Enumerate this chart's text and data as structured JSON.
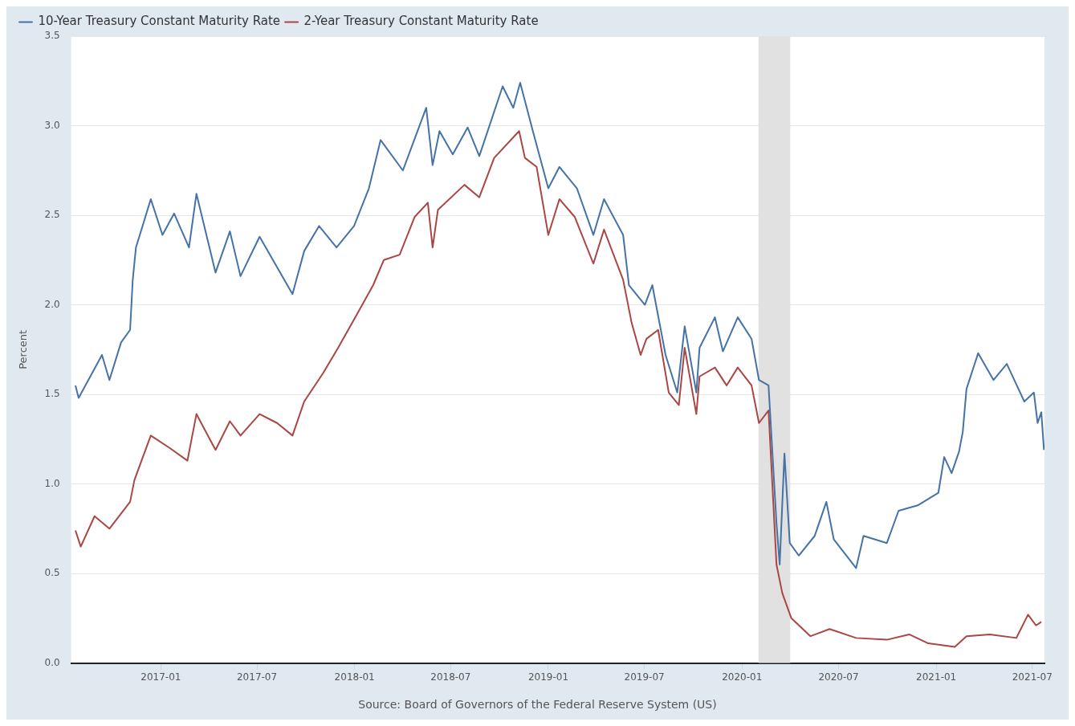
{
  "chart_data": {
    "type": "line",
    "ylabel": "Percent",
    "annotations": [
      "Source: Board of Governors of the Federal Reserve System (US)"
    ],
    "xlim": [
      "2016-07-16",
      "2021-07-24"
    ],
    "xticks": [
      "2017-01",
      "2017-07",
      "2018-01",
      "2018-07",
      "2019-01",
      "2019-07",
      "2020-01",
      "2020-07",
      "2021-01",
      "2021-07"
    ],
    "ylim": [
      0,
      3.5
    ],
    "yticks": [
      {
        "value": 0,
        "label": "0.0"
      },
      {
        "value": 0.5,
        "label": "0.5"
      },
      {
        "value": 1,
        "label": "1.0"
      },
      {
        "value": 1.5,
        "label": "1.5"
      },
      {
        "value": 2,
        "label": "2.0"
      },
      {
        "value": 2.5,
        "label": "2.5"
      },
      {
        "value": 3,
        "label": "3.0"
      },
      {
        "value": 3.5,
        "label": "3.5"
      }
    ],
    "grid": "y",
    "legend": "top left",
    "marker": "none",
    "line_style": "solid",
    "bands": [
      {
        "axis": "x",
        "from": "2020-02-01",
        "to": "2020-04-01",
        "color": "#e1e1e1"
      }
    ],
    "series": [
      {
        "name": "10-Year Treasury Constant Maturity Rate",
        "color": "#4572a7",
        "x": [
          "2016-07-24",
          "2016-07-30",
          "2016-09-12",
          "2016-09-26",
          "2016-10-18",
          "2016-11-04",
          "2016-11-09",
          "2016-11-15",
          "2016-12-13",
          "2017-01-04",
          "2017-01-26",
          "2017-02-23",
          "2017-03-09",
          "2017-04-14",
          "2017-05-11",
          "2017-05-31",
          "2017-07-06",
          "2017-09-06",
          "2017-09-28",
          "2017-10-26",
          "2017-11-28",
          "2017-12-31",
          "2018-01-28",
          "2018-02-19",
          "2018-04-02",
          "2018-05-16",
          "2018-05-28",
          "2018-06-10",
          "2018-07-05",
          "2018-08-02",
          "2018-08-24",
          "2018-10-07",
          "2018-10-27",
          "2018-11-09",
          "2018-12-02",
          "2019-01-01",
          "2019-01-22",
          "2019-02-24",
          "2019-03-27",
          "2019-04-16",
          "2019-05-22",
          "2019-06-02",
          "2019-07-02",
          "2019-07-16",
          "2019-08-10",
          "2019-09-01",
          "2019-09-15",
          "2019-10-07",
          "2019-10-13",
          "2019-11-11",
          "2019-11-26",
          "2019-12-24",
          "2020-01-19",
          "2020-02-02",
          "2020-02-20",
          "2020-03-06",
          "2020-03-12",
          "2020-03-21",
          "2020-03-31",
          "2020-04-17",
          "2020-05-17",
          "2020-06-08",
          "2020-06-22",
          "2020-08-03",
          "2020-08-17",
          "2020-09-30",
          "2020-10-22",
          "2020-11-27",
          "2021-01-05",
          "2021-01-16",
          "2021-01-30",
          "2021-02-13",
          "2021-02-20",
          "2021-02-27",
          "2021-03-21",
          "2021-04-19",
          "2021-05-14",
          "2021-06-16",
          "2021-07-04",
          "2021-07-11",
          "2021-07-18",
          "2021-07-23"
        ],
        "values": [
          1.55,
          1.48,
          1.72,
          1.58,
          1.79,
          1.86,
          2.14,
          2.32,
          2.59,
          2.39,
          2.51,
          2.32,
          2.62,
          2.18,
          2.41,
          2.16,
          2.38,
          2.06,
          2.3,
          2.44,
          2.32,
          2.44,
          2.65,
          2.92,
          2.75,
          3.1,
          2.78,
          2.97,
          2.84,
          2.99,
          2.83,
          3.22,
          3.1,
          3.24,
          2.98,
          2.65,
          2.77,
          2.65,
          2.39,
          2.59,
          2.39,
          2.11,
          2.0,
          2.11,
          1.72,
          1.51,
          1.88,
          1.51,
          1.76,
          1.93,
          1.74,
          1.93,
          1.81,
          1.58,
          1.55,
          0.78,
          0.55,
          1.17,
          0.67,
          0.6,
          0.71,
          0.9,
          0.69,
          0.53,
          0.71,
          0.67,
          0.85,
          0.88,
          0.95,
          1.15,
          1.06,
          1.18,
          1.29,
          1.53,
          1.73,
          1.58,
          1.67,
          1.46,
          1.51,
          1.34,
          1.4,
          1.19
        ]
      },
      {
        "name": "2-Year Treasury Constant Maturity Rate",
        "color": "#aa4643",
        "x": [
          "2016-07-24",
          "2016-08-03",
          "2016-08-29",
          "2016-09-26",
          "2016-11-04",
          "2016-11-12",
          "2016-11-23",
          "2016-12-13",
          "2017-01-18",
          "2017-02-20",
          "2017-03-09",
          "2017-04-14",
          "2017-05-11",
          "2017-05-31",
          "2017-07-06",
          "2017-08-08",
          "2017-09-06",
          "2017-09-28",
          "2017-11-03",
          "2017-12-01",
          "2018-01-06",
          "2018-02-05",
          "2018-02-25",
          "2018-03-27",
          "2018-04-24",
          "2018-05-19",
          "2018-05-28",
          "2018-06-07",
          "2018-07-27",
          "2018-08-24",
          "2018-09-21",
          "2018-11-07",
          "2018-11-18",
          "2018-12-10",
          "2019-01-01",
          "2019-01-22",
          "2019-02-20",
          "2019-03-27",
          "2019-04-16",
          "2019-05-22",
          "2019-06-07",
          "2019-06-24",
          "2019-07-05",
          "2019-07-27",
          "2019-08-16",
          "2019-09-04",
          "2019-09-15",
          "2019-10-07",
          "2019-10-13",
          "2019-11-11",
          "2019-12-03",
          "2019-12-24",
          "2020-01-19",
          "2020-02-02",
          "2020-02-20",
          "2020-03-06",
          "2020-03-17",
          "2020-04-03",
          "2020-05-09",
          "2020-06-14",
          "2020-08-03",
          "2020-09-30",
          "2020-11-11",
          "2020-12-17",
          "2021-02-05",
          "2021-02-27",
          "2021-04-12",
          "2021-06-01",
          "2021-06-23",
          "2021-07-08",
          "2021-07-18"
        ],
        "values": [
          0.74,
          0.65,
          0.82,
          0.75,
          0.9,
          1.02,
          1.11,
          1.27,
          1.2,
          1.13,
          1.39,
          1.19,
          1.35,
          1.27,
          1.39,
          1.34,
          1.27,
          1.46,
          1.62,
          1.76,
          1.95,
          2.11,
          2.25,
          2.28,
          2.49,
          2.57,
          2.32,
          2.53,
          2.67,
          2.6,
          2.82,
          2.97,
          2.82,
          2.77,
          2.39,
          2.59,
          2.49,
          2.23,
          2.42,
          2.14,
          1.9,
          1.72,
          1.81,
          1.86,
          1.51,
          1.44,
          1.76,
          1.39,
          1.6,
          1.65,
          1.55,
          1.65,
          1.55,
          1.34,
          1.41,
          0.55,
          0.39,
          0.25,
          0.15,
          0.19,
          0.14,
          0.13,
          0.16,
          0.11,
          0.09,
          0.15,
          0.16,
          0.14,
          0.27,
          0.21,
          0.23
        ]
      }
    ]
  }
}
